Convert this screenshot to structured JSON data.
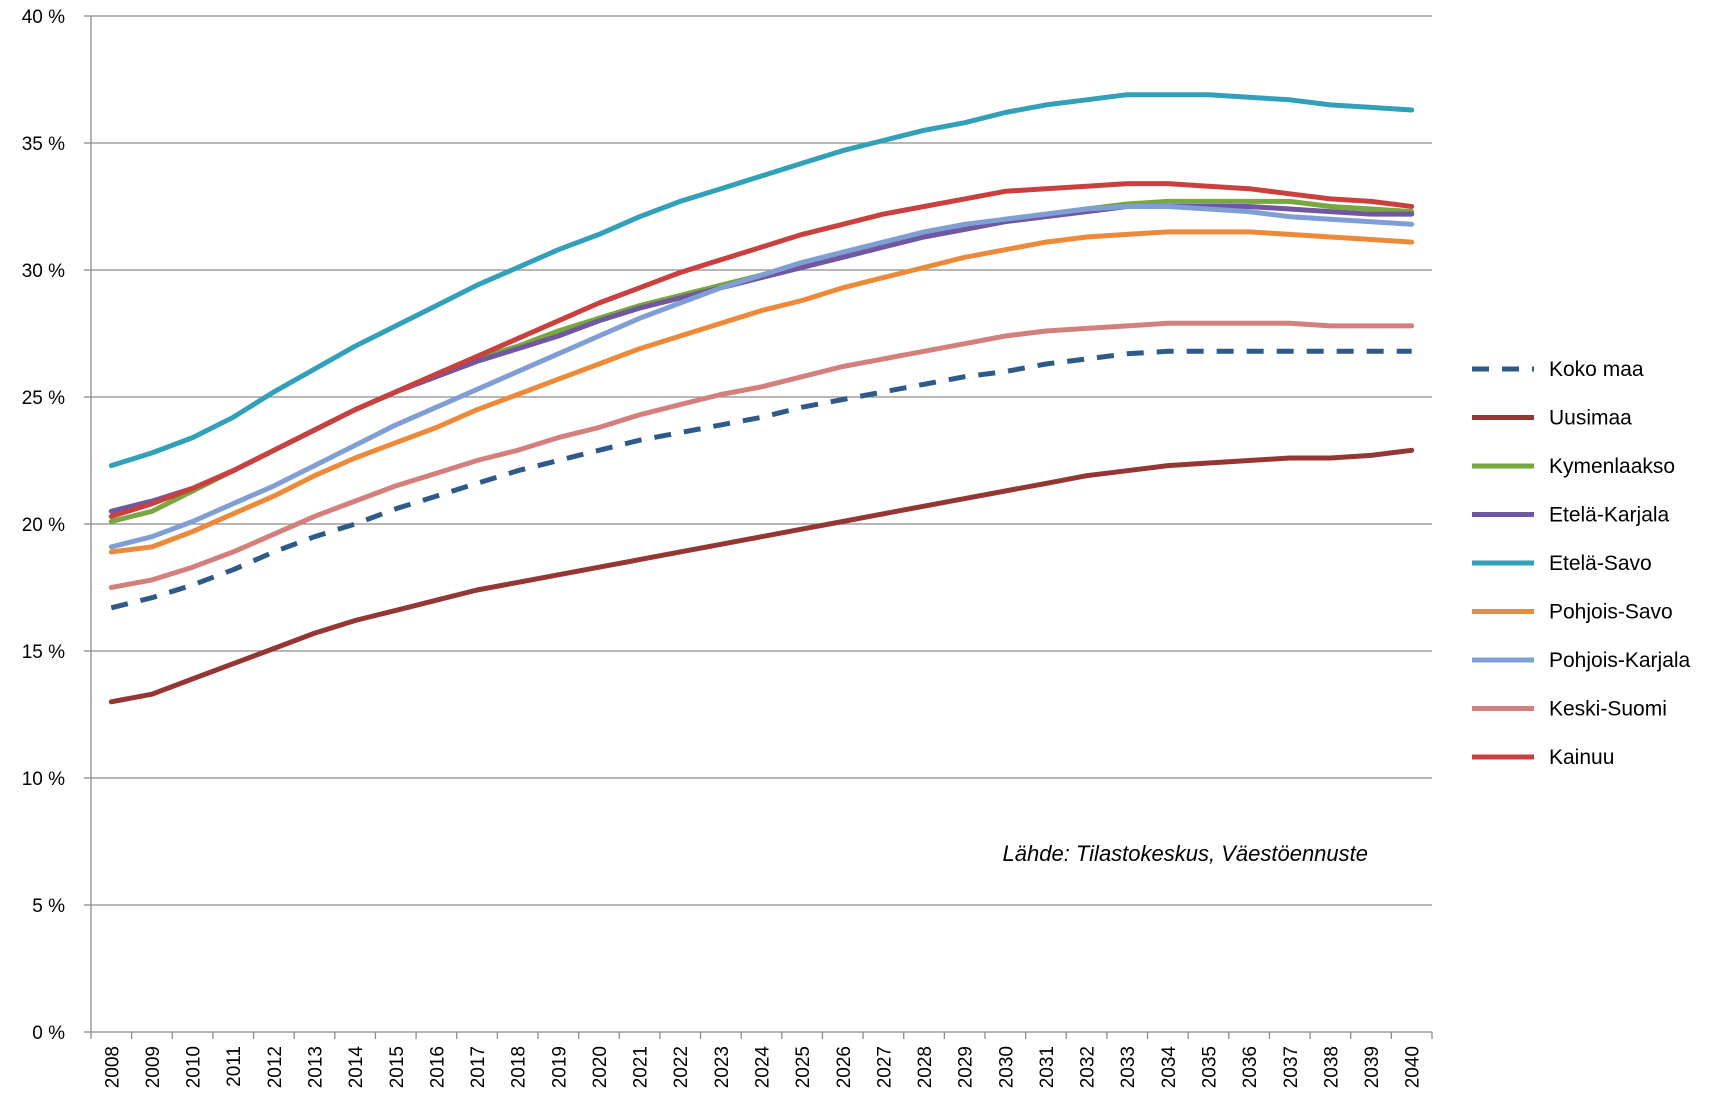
{
  "chart_data": {
    "type": "line",
    "title": "",
    "xlabel": "",
    "ylabel": "",
    "ylim": [
      0,
      40
    ],
    "ytick_labels": [
      "0 %",
      "5 %",
      "10 %",
      "15 %",
      "20 %",
      "25 %",
      "30 %",
      "35 %",
      "40 %"
    ],
    "yticks": [
      0,
      5,
      10,
      15,
      20,
      25,
      30,
      35,
      40
    ],
    "grid": true,
    "legend_position": "right",
    "annotation": "Lähde: Tilastokeskus, Väestöennuste",
    "x": [
      "2008",
      "2009",
      "2010",
      "2011",
      "2012",
      "2013",
      "2014",
      "2015",
      "2016",
      "2017",
      "2018",
      "2019",
      "2020",
      "2021",
      "2022",
      "2023",
      "2024",
      "2025",
      "2026",
      "2027",
      "2028",
      "2029",
      "2030",
      "2031",
      "2032",
      "2033",
      "2034",
      "2035",
      "2036",
      "2037",
      "2038",
      "2039",
      "2040"
    ],
    "series": [
      {
        "name": "Koko maa",
        "color": "#2E5A8A",
        "dashed": true,
        "values": [
          16.7,
          17.1,
          17.6,
          18.2,
          18.9,
          19.5,
          20.0,
          20.6,
          21.1,
          21.6,
          22.1,
          22.5,
          22.9,
          23.3,
          23.6,
          23.9,
          24.2,
          24.6,
          24.9,
          25.2,
          25.5,
          25.8,
          26.0,
          26.3,
          26.5,
          26.7,
          26.8,
          26.8,
          26.8,
          26.8,
          26.8,
          26.8,
          26.8
        ]
      },
      {
        "name": "Uusimaa",
        "color": "#943634",
        "dashed": false,
        "values": [
          13.0,
          13.3,
          13.9,
          14.5,
          15.1,
          15.7,
          16.2,
          16.6,
          17.0,
          17.4,
          17.7,
          18.0,
          18.3,
          18.6,
          18.9,
          19.2,
          19.5,
          19.8,
          20.1,
          20.4,
          20.7,
          21.0,
          21.3,
          21.6,
          21.9,
          22.1,
          22.3,
          22.4,
          22.5,
          22.6,
          22.6,
          22.7,
          22.9
        ]
      },
      {
        "name": "Kymenlaakso",
        "color": "#77A73E",
        "dashed": false,
        "values": [
          20.1,
          20.5,
          21.3,
          22.1,
          22.9,
          23.7,
          24.5,
          25.2,
          25.9,
          26.5,
          27.0,
          27.6,
          28.1,
          28.6,
          29.0,
          29.4,
          29.8,
          30.2,
          30.6,
          31.0,
          31.4,
          31.7,
          32.0,
          32.2,
          32.4,
          32.6,
          32.7,
          32.7,
          32.7,
          32.7,
          32.5,
          32.4,
          32.3
        ]
      },
      {
        "name": "Etelä-Karjala",
        "color": "#7057A0",
        "dashed": false,
        "values": [
          20.5,
          20.9,
          21.4,
          22.1,
          22.9,
          23.7,
          24.5,
          25.2,
          25.8,
          26.4,
          26.9,
          27.4,
          28.0,
          28.5,
          28.9,
          29.3,
          29.7,
          30.1,
          30.5,
          30.9,
          31.3,
          31.6,
          31.9,
          32.1,
          32.3,
          32.5,
          32.5,
          32.5,
          32.5,
          32.4,
          32.3,
          32.2,
          32.2
        ]
      },
      {
        "name": "Etelä-Savo",
        "color": "#31A0B9",
        "dashed": false,
        "values": [
          22.3,
          22.8,
          23.4,
          24.2,
          25.2,
          26.1,
          27.0,
          27.8,
          28.6,
          29.4,
          30.1,
          30.8,
          31.4,
          32.1,
          32.7,
          33.2,
          33.7,
          34.2,
          34.7,
          35.1,
          35.5,
          35.8,
          36.2,
          36.5,
          36.7,
          36.9,
          36.9,
          36.9,
          36.8,
          36.7,
          36.5,
          36.4,
          36.3
        ]
      },
      {
        "name": "Pohjois-Savo",
        "color": "#ED8A3A",
        "dashed": false,
        "values": [
          18.9,
          19.1,
          19.7,
          20.4,
          21.1,
          21.9,
          22.6,
          23.2,
          23.8,
          24.5,
          25.1,
          25.7,
          26.3,
          26.9,
          27.4,
          27.9,
          28.4,
          28.8,
          29.3,
          29.7,
          30.1,
          30.5,
          30.8,
          31.1,
          31.3,
          31.4,
          31.5,
          31.5,
          31.5,
          31.4,
          31.3,
          31.2,
          31.1
        ]
      },
      {
        "name": "Pohjois-Karjala",
        "color": "#7F9FD4",
        "dashed": false,
        "values": [
          19.1,
          19.5,
          20.1,
          20.8,
          21.5,
          22.3,
          23.1,
          23.9,
          24.6,
          25.3,
          26.0,
          26.7,
          27.4,
          28.1,
          28.7,
          29.3,
          29.8,
          30.3,
          30.7,
          31.1,
          31.5,
          31.8,
          32.0,
          32.2,
          32.4,
          32.5,
          32.5,
          32.4,
          32.3,
          32.1,
          32.0,
          31.9,
          31.8
        ]
      },
      {
        "name": "Keski-Suomi",
        "color": "#D3807D",
        "dashed": false,
        "values": [
          17.5,
          17.8,
          18.3,
          18.9,
          19.6,
          20.3,
          20.9,
          21.5,
          22.0,
          22.5,
          22.9,
          23.4,
          23.8,
          24.3,
          24.7,
          25.1,
          25.4,
          25.8,
          26.2,
          26.5,
          26.8,
          27.1,
          27.4,
          27.6,
          27.7,
          27.8,
          27.9,
          27.9,
          27.9,
          27.9,
          27.8,
          27.8,
          27.8
        ]
      },
      {
        "name": "Kainuu",
        "color": "#C9403F",
        "dashed": false,
        "values": [
          20.3,
          20.8,
          21.4,
          22.1,
          22.9,
          23.7,
          24.5,
          25.2,
          25.9,
          26.6,
          27.3,
          28.0,
          28.7,
          29.3,
          29.9,
          30.4,
          30.9,
          31.4,
          31.8,
          32.2,
          32.5,
          32.8,
          33.1,
          33.2,
          33.3,
          33.4,
          33.4,
          33.3,
          33.2,
          33.0,
          32.8,
          32.7,
          32.5
        ]
      }
    ]
  }
}
